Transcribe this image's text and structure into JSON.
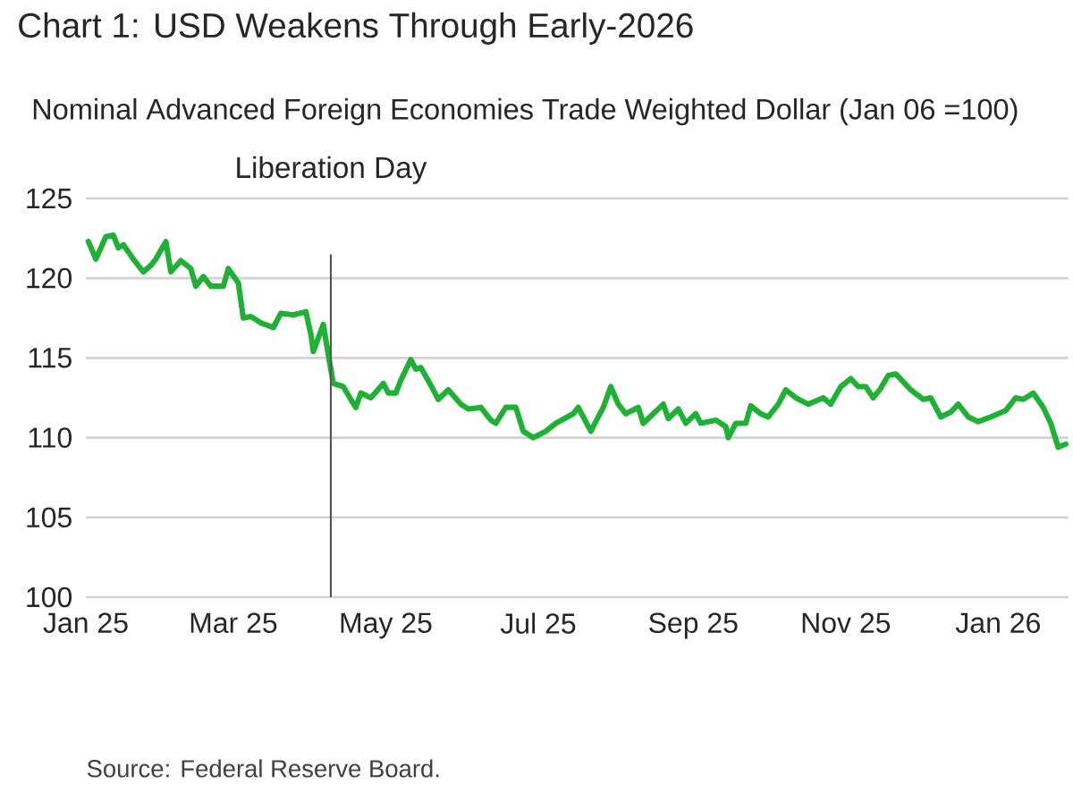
{
  "chart_data": {
    "type": "line",
    "title": "Chart 1: USD Weakens Through Early-2026",
    "subtitle": "Nominal Advanced Foreign Economies Trade Weighted Dollar (Jan 06 =100)",
    "annotations": [
      "Source: Federal Reserve Board."
    ],
    "x": [
      "2025-01-02",
      "2025-01-05",
      "2025-01-09",
      "2025-01-12",
      "2025-01-14",
      "2025-01-16",
      "2025-01-20",
      "2025-01-24",
      "2025-01-27",
      "2025-01-29",
      "2025-02-02",
      "2025-02-04",
      "2025-02-08",
      "2025-02-12",
      "2025-02-14",
      "2025-02-17",
      "2025-02-20",
      "2025-02-25",
      "2025-02-27",
      "2025-03-03",
      "2025-03-05",
      "2025-03-08",
      "2025-03-12",
      "2025-03-17",
      "2025-03-20",
      "2025-03-25",
      "2025-03-30",
      "2025-04-01",
      "2025-04-02",
      "2025-04-06",
      "2025-04-08",
      "2025-04-10",
      "2025-04-14",
      "2025-04-17",
      "2025-04-19",
      "2025-04-21",
      "2025-04-25",
      "2025-04-30",
      "2025-05-02",
      "2025-05-05",
      "2025-05-07",
      "2025-05-11",
      "2025-05-13",
      "2025-05-15",
      "2025-05-20",
      "2025-05-22",
      "2025-05-26",
      "2025-05-31",
      "2025-06-03",
      "2025-06-08",
      "2025-06-12",
      "2025-06-14",
      "2025-06-18",
      "2025-06-22",
      "2025-06-25",
      "2025-06-29",
      "2025-07-04",
      "2025-07-08",
      "2025-07-15",
      "2025-07-17",
      "2025-07-22",
      "2025-07-27",
      "2025-07-30",
      "2025-08-02",
      "2025-08-05",
      "2025-08-10",
      "2025-08-12",
      "2025-08-16",
      "2025-08-20",
      "2025-08-22",
      "2025-08-26",
      "2025-08-29",
      "2025-09-02",
      "2025-09-04",
      "2025-09-10",
      "2025-09-14",
      "2025-09-15",
      "2025-09-18",
      "2025-09-22",
      "2025-09-24",
      "2025-09-28",
      "2025-10-01",
      "2025-10-05",
      "2025-10-08",
      "2025-10-12",
      "2025-10-17",
      "2025-10-23",
      "2025-10-26",
      "2025-10-30",
      "2025-11-03",
      "2025-11-06",
      "2025-11-09",
      "2025-11-12",
      "2025-11-15",
      "2025-11-18",
      "2025-11-21",
      "2025-11-24",
      "2025-11-27",
      "2025-12-02",
      "2025-12-05",
      "2025-12-09",
      "2025-12-13",
      "2025-12-16",
      "2025-12-20",
      "2025-12-24",
      "2025-12-29",
      "2026-01-04",
      "2026-01-08",
      "2026-01-11",
      "2026-01-15",
      "2026-01-19",
      "2026-01-22",
      "2026-01-25",
      "2026-01-28"
    ],
    "series": [
      {
        "color": "#1db233",
        "values": [
          122.3,
          121.2,
          122.6,
          122.7,
          121.9,
          122.1,
          121.2,
          120.4,
          120.8,
          121.2,
          122.3,
          120.4,
          121.1,
          120.6,
          119.5,
          120.1,
          119.5,
          119.5,
          120.6,
          119.7,
          117.5,
          117.6,
          117.2,
          116.9,
          117.8,
          117.7,
          117.9,
          116.5,
          115.4,
          117.1,
          115.2,
          113.4,
          113.2,
          112.4,
          111.9,
          112.8,
          112.5,
          113.4,
          112.8,
          112.8,
          113.6,
          114.9,
          114.3,
          114.4,
          113.0,
          112.4,
          113.0,
          112.1,
          111.8,
          111.9,
          111.1,
          110.9,
          111.9,
          111.9,
          110.4,
          110.0,
          110.4,
          110.9,
          111.5,
          111.9,
          110.4,
          111.9,
          113.2,
          112.1,
          111.5,
          111.9,
          110.9,
          111.5,
          112.1,
          111.2,
          111.8,
          110.9,
          111.5,
          110.9,
          111.1,
          110.7,
          110.0,
          110.9,
          110.9,
          112.0,
          111.5,
          111.3,
          112.1,
          113.0,
          112.5,
          112.1,
          112.5,
          112.1,
          113.2,
          113.7,
          113.2,
          113.2,
          112.5,
          113.1,
          113.9,
          114.0,
          113.5,
          113.0,
          112.4,
          112.5,
          111.3,
          111.6,
          112.1,
          111.3,
          111.0,
          111.3,
          111.7,
          112.5,
          112.4,
          112.8,
          111.9,
          110.9,
          109.4,
          109.6
        ]
      }
    ],
    "xlim": [
      "2025-01-01",
      "2026-01-29"
    ],
    "xticks": [
      {
        "value": "2025-01-01",
        "label": "Jan 25"
      },
      {
        "value": "2025-03-01",
        "label": "Mar 25"
      },
      {
        "value": "2025-05-01",
        "label": "May 25"
      },
      {
        "value": "2025-07-01",
        "label": "Jul 25"
      },
      {
        "value": "2025-09-01",
        "label": "Sep 25"
      },
      {
        "value": "2025-11-01",
        "label": "Nov 25"
      },
      {
        "value": "2026-01-01",
        "label": "Jan 26"
      }
    ],
    "ylim": [
      100,
      125
    ],
    "yticks": [
      100,
      105,
      110,
      115,
      120,
      125
    ],
    "grid": "y",
    "line_style": "solid",
    "ref_lines": [
      {
        "axis": "x",
        "value": "2025-04-09",
        "label": "Liberation Day",
        "color": "#555555"
      }
    ]
  }
}
